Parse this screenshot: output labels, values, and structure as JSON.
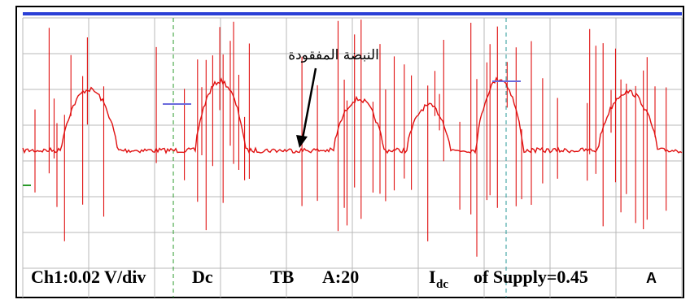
{
  "annotation": "النبضة المفقودة",
  "caption": {
    "channel": "Ch1:0.02 V/div",
    "coupling": "Dc",
    "timebase": "TB",
    "trigger": "A:20",
    "current_symbol": "I",
    "current_subscript": "dc",
    "current_text": "of Supply=0.45",
    "current_unit": "A"
  }
}
